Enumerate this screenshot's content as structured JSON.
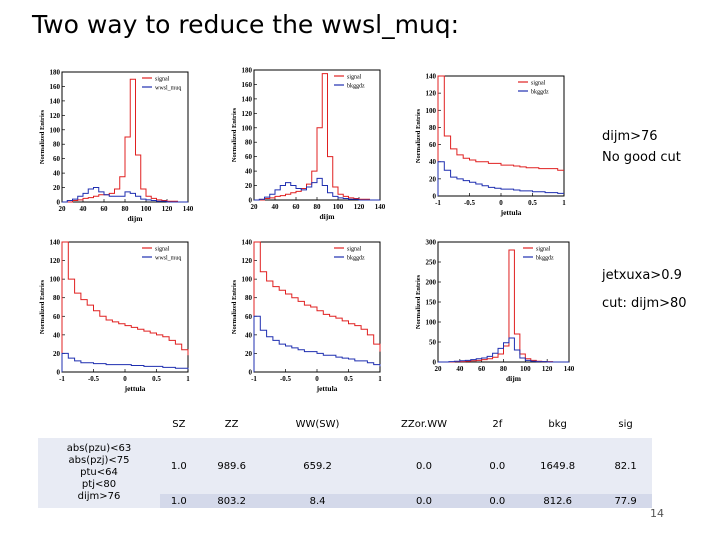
{
  "slide": {
    "title": "Two way to reduce the wwsl_muq:",
    "page_number": "14"
  },
  "notes": {
    "top_line1": "dijm>76",
    "top_line2": "No good cut",
    "bottom_line1": "jetxuxa>0.9",
    "bottom_line2": "cut: dijm>80"
  },
  "colors": {
    "signal": "#e02020",
    "background": "#1f2fb0",
    "axis": "#000000"
  },
  "chart_data": [
    {
      "type": "line",
      "ylabel": "Normalized Entries",
      "xlabel": "dijm",
      "xlim": [
        20,
        140
      ],
      "ylim": [
        0,
        180
      ],
      "xticks": [
        "20",
        "40",
        "60",
        "80",
        "100",
        "120",
        "140"
      ],
      "yticks": [
        "0",
        "20",
        "40",
        "60",
        "80",
        "100",
        "120",
        "140",
        "160",
        "180"
      ],
      "legend": [
        "signal",
        "wwsl_muq"
      ],
      "x": [
        20,
        25,
        30,
        35,
        40,
        45,
        50,
        55,
        60,
        65,
        70,
        75,
        80,
        85,
        90,
        95,
        100,
        105,
        110,
        115,
        120,
        125,
        130,
        135,
        140
      ],
      "series": [
        {
          "name": "signal",
          "values": [
            0,
            0,
            2,
            3,
            5,
            6,
            8,
            10,
            10,
            12,
            18,
            35,
            90,
            170,
            65,
            18,
            8,
            5,
            3,
            2,
            1,
            1,
            0,
            0,
            0
          ]
        },
        {
          "name": "wwsl_muq",
          "values": [
            0,
            2,
            4,
            8,
            12,
            18,
            20,
            14,
            10,
            8,
            8,
            8,
            14,
            12,
            8,
            4,
            3,
            2,
            1,
            1,
            0,
            0,
            0,
            0,
            0
          ]
        }
      ]
    },
    {
      "type": "line",
      "ylabel": "Normalized Entries",
      "xlabel": "dijm",
      "xlim": [
        20,
        140
      ],
      "ylim": [
        0,
        180
      ],
      "xticks": [
        "20",
        "40",
        "60",
        "80",
        "100",
        "120",
        "140"
      ],
      "yticks": [
        "0",
        "20",
        "40",
        "60",
        "80",
        "100",
        "120",
        "140",
        "160",
        "180"
      ],
      "legend": [
        "signal",
        "bkggdz"
      ],
      "x": [
        20,
        25,
        30,
        35,
        40,
        45,
        50,
        55,
        60,
        65,
        70,
        75,
        80,
        85,
        90,
        95,
        100,
        105,
        110,
        115,
        120,
        125,
        130,
        135,
        140
      ],
      "series": [
        {
          "name": "signal",
          "values": [
            0,
            0,
            2,
            3,
            5,
            6,
            8,
            10,
            12,
            16,
            22,
            40,
            100,
            175,
            60,
            18,
            8,
            5,
            3,
            2,
            1,
            1,
            0,
            0,
            0
          ]
        },
        {
          "name": "bkggdz",
          "values": [
            0,
            1,
            4,
            8,
            14,
            20,
            24,
            20,
            16,
            14,
            18,
            24,
            30,
            20,
            10,
            5,
            3,
            2,
            1,
            1,
            0,
            0,
            0,
            0,
            0
          ]
        }
      ]
    },
    {
      "type": "line",
      "ylabel": "Normalized Entries",
      "xlabel": "jettula",
      "xlim": [
        -1,
        1
      ],
      "ylim": [
        0,
        140
      ],
      "xticks": [
        "-1",
        "-0.5",
        "0",
        "0.5",
        "1"
      ],
      "yticks": [
        "0",
        "20",
        "40",
        "60",
        "80",
        "100",
        "120",
        "140"
      ],
      "legend": [
        "signal",
        "bkggdz"
      ],
      "x": [
        -1,
        -0.9,
        -0.8,
        -0.7,
        -0.6,
        -0.5,
        -0.4,
        -0.3,
        -0.2,
        -0.1,
        0,
        0.1,
        0.2,
        0.3,
        0.4,
        0.5,
        0.6,
        0.7,
        0.8,
        0.9,
        1
      ],
      "series": [
        {
          "name": "signal",
          "values": [
            140,
            70,
            55,
            48,
            44,
            42,
            40,
            40,
            38,
            38,
            36,
            36,
            35,
            34,
            33,
            33,
            32,
            32,
            32,
            30,
            30
          ]
        },
        {
          "name": "bkggdz",
          "values": [
            40,
            30,
            22,
            20,
            18,
            16,
            14,
            12,
            10,
            9,
            8,
            8,
            7,
            6,
            6,
            5,
            5,
            4,
            4,
            3,
            3
          ]
        }
      ]
    },
    {
      "type": "line",
      "ylabel": "Normalized Entries",
      "xlabel": "jettula",
      "xlim": [
        -1,
        1
      ],
      "ylim": [
        0,
        140
      ],
      "xticks": [
        "-1",
        "-0.5",
        "0",
        "0.5",
        "1"
      ],
      "yticks": [
        "0",
        "20",
        "40",
        "60",
        "80",
        "100",
        "120",
        "140"
      ],
      "legend": [
        "signal",
        "wwsl_muq"
      ],
      "x": [
        -1,
        -0.9,
        -0.8,
        -0.7,
        -0.6,
        -0.5,
        -0.4,
        -0.3,
        -0.2,
        -0.1,
        0,
        0.1,
        0.2,
        0.3,
        0.4,
        0.5,
        0.6,
        0.7,
        0.8,
        0.9,
        1
      ],
      "series": [
        {
          "name": "signal",
          "values": [
            140,
            100,
            85,
            78,
            72,
            66,
            60,
            56,
            54,
            52,
            50,
            48,
            46,
            44,
            42,
            40,
            38,
            34,
            30,
            24,
            18
          ]
        },
        {
          "name": "wwsl_muq",
          "values": [
            20,
            15,
            12,
            10,
            10,
            9,
            9,
            8,
            8,
            8,
            8,
            7,
            7,
            6,
            6,
            6,
            5,
            5,
            4,
            4,
            3
          ]
        }
      ]
    },
    {
      "type": "line",
      "ylabel": "Normalized Entries",
      "xlabel": "jettula",
      "xlim": [
        -1,
        1
      ],
      "ylim": [
        0,
        140
      ],
      "xticks": [
        "-1",
        "-0.5",
        "0",
        "0.5",
        "1"
      ],
      "yticks": [
        "0",
        "20",
        "40",
        "60",
        "80",
        "100",
        "120",
        "140"
      ],
      "legend": [
        "signal",
        "bkggdz"
      ],
      "x": [
        -1,
        -0.9,
        -0.8,
        -0.7,
        -0.6,
        -0.5,
        -0.4,
        -0.3,
        -0.2,
        -0.1,
        0,
        0.1,
        0.2,
        0.3,
        0.4,
        0.5,
        0.6,
        0.7,
        0.8,
        0.9,
        1
      ],
      "series": [
        {
          "name": "signal",
          "values": [
            140,
            108,
            98,
            92,
            88,
            84,
            80,
            76,
            72,
            70,
            66,
            62,
            60,
            58,
            55,
            52,
            50,
            46,
            40,
            30,
            22
          ]
        },
        {
          "name": "bkggdz",
          "values": [
            60,
            45,
            38,
            34,
            30,
            28,
            26,
            24,
            22,
            22,
            20,
            18,
            18,
            16,
            15,
            14,
            12,
            12,
            10,
            8,
            6
          ]
        }
      ]
    },
    {
      "type": "line",
      "ylabel": "Normalized Entries",
      "xlabel": "dijm",
      "xlim": [
        20,
        140
      ],
      "ylim": [
        0,
        300
      ],
      "xticks": [
        "20",
        "40",
        "60",
        "80",
        "100",
        "120",
        "140"
      ],
      "yticks": [
        "0",
        "50",
        "100",
        "150",
        "200",
        "250",
        "300"
      ],
      "legend": [
        "signal",
        "bkggdz"
      ],
      "x": [
        20,
        25,
        30,
        35,
        40,
        45,
        50,
        55,
        60,
        65,
        70,
        75,
        80,
        85,
        90,
        95,
        100,
        105,
        110,
        115,
        120,
        125,
        130,
        135,
        140
      ],
      "series": [
        {
          "name": "signal",
          "values": [
            0,
            0,
            0,
            1,
            1,
            2,
            3,
            4,
            6,
            8,
            12,
            20,
            40,
            280,
            70,
            20,
            8,
            4,
            2,
            1,
            1,
            0,
            0,
            0,
            0
          ]
        },
        {
          "name": "bkggdz",
          "values": [
            0,
            0,
            1,
            2,
            3,
            4,
            6,
            8,
            10,
            14,
            22,
            34,
            48,
            60,
            30,
            10,
            4,
            2,
            1,
            1,
            0,
            0,
            0,
            0,
            0
          ]
        }
      ]
    }
  ],
  "table": {
    "headers": [
      "SZ",
      "ZZ",
      "WW(SW)",
      "ZZor.WW",
      "2f",
      "bkg",
      "sig"
    ],
    "rows": [
      {
        "cuts": [
          "abs(pzu)<63",
          "abs(pzj)<75",
          "ptu<64",
          "ptj<80",
          "dijm>76"
        ],
        "values": [
          "1.0",
          "989.6",
          "659.2",
          "0.0",
          "0.0",
          "1649.8",
          "82.1"
        ]
      },
      {
        "cuts": [],
        "values": [
          "1.0",
          "803.2",
          "8.4",
          "0.0",
          "0.0",
          "812.6",
          "77.9"
        ]
      }
    ]
  }
}
